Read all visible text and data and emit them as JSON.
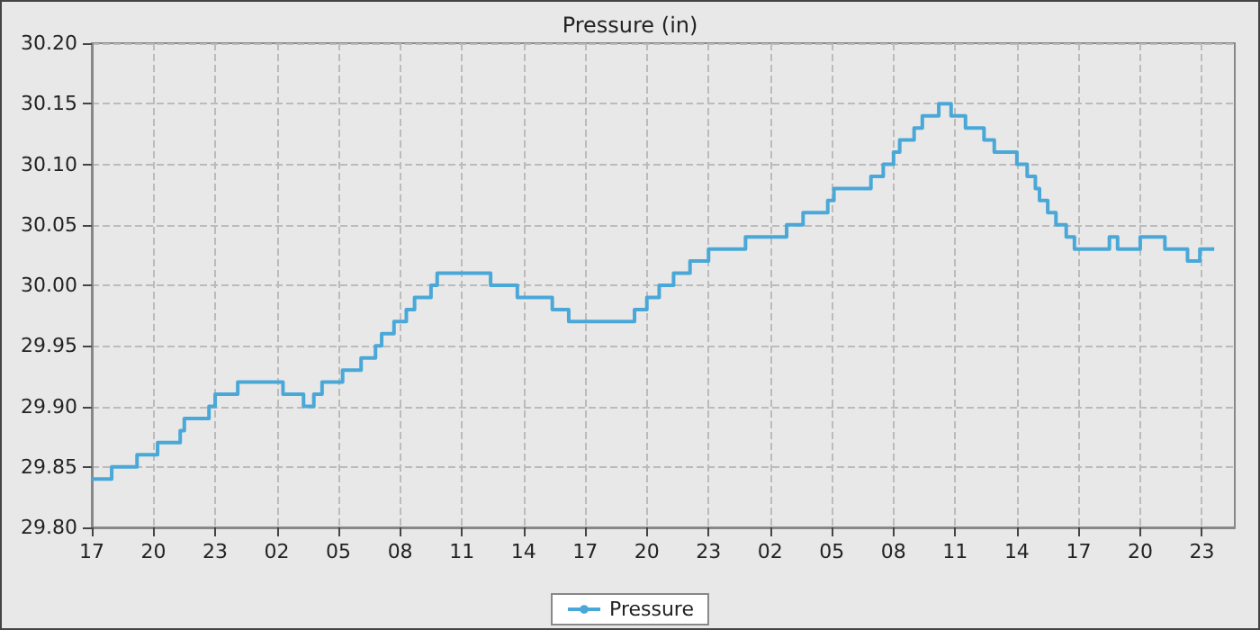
{
  "chart_data": {
    "type": "step",
    "title": "Pressure (in)",
    "x": [
      "--01-01T17:00",
      "--01-01T17:58",
      "--01-01T19:12",
      "--01-01T20:12",
      "--01-01T21:18",
      "--01-01T21:30",
      "--01-01T22:42",
      "--01-01T23:00",
      "--01-02T00:06",
      "--01-02T02:18",
      "--01-02T03:18",
      "--01-02T03:48",
      "--01-02T04:12",
      "--01-02T05:12",
      "--01-02T06:06",
      "--01-02T06:48",
      "--01-02T07:06",
      "--01-02T07:42",
      "--01-02T08:18",
      "--01-02T08:42",
      "--01-02T09:30",
      "--01-02T09:48",
      "--01-02T12:24",
      "--01-02T13:42",
      "--01-02T15:24",
      "--01-02T16:12",
      "--01-02T19:24",
      "--01-02T20:00",
      "--01-02T20:36",
      "--01-02T21:18",
      "--01-02T22:06",
      "--01-02T23:00",
      "--01-03T00:48",
      "--01-03T02:48",
      "--01-03T03:36",
      "--01-03T04:48",
      "--01-03T05:06",
      "--01-03T06:54",
      "--01-03T07:30",
      "--01-03T08:00",
      "--01-03T08:18",
      "--01-03T09:00",
      "--01-03T09:24",
      "--01-03T10:12",
      "--01-03T10:48",
      "--01-03T11:30",
      "--01-03T12:24",
      "--01-03T12:54",
      "--01-03T14:00",
      "--01-03T14:30",
      "--01-03T14:54",
      "--01-03T15:06",
      "--01-03T15:30",
      "--01-03T15:54",
      "--01-03T16:24",
      "--01-03T16:48",
      "--01-03T18:30",
      "--01-03T18:54",
      "--01-03T20:00",
      "--01-03T21:12",
      "--01-03T22:18",
      "--01-03T22:54",
      "--01-03T23:36"
    ],
    "series": [
      {
        "name": "Pressure",
        "color": "#4aa8d8",
        "values": [
          29.84,
          29.85,
          29.86,
          29.87,
          29.88,
          29.89,
          29.9,
          29.91,
          29.92,
          29.91,
          29.9,
          29.91,
          29.92,
          29.93,
          29.94,
          29.95,
          29.96,
          29.97,
          29.98,
          29.99,
          30.0,
          30.01,
          30.0,
          29.99,
          29.98,
          29.97,
          29.98,
          29.99,
          30.0,
          30.01,
          30.02,
          30.03,
          30.04,
          30.05,
          30.06,
          30.07,
          30.08,
          30.09,
          30.1,
          30.11,
          30.12,
          30.13,
          30.14,
          30.15,
          30.14,
          30.13,
          30.12,
          30.11,
          30.1,
          30.09,
          30.08,
          30.07,
          30.06,
          30.05,
          30.04,
          30.03,
          30.04,
          30.03,
          30.04,
          30.03,
          30.02,
          30.03,
          30.03
        ]
      }
    ],
    "xlim": [
      "--01-01T17:00",
      "--01-04T00:36"
    ],
    "xticks": [
      {
        "value": "--01-01T17:00",
        "label": "17"
      },
      {
        "value": "--01-01T20:00",
        "label": "20"
      },
      {
        "value": "--01-01T23:00",
        "label": "23"
      },
      {
        "value": "--01-02T02:00",
        "label": "02"
      },
      {
        "value": "--01-02T05:00",
        "label": "05"
      },
      {
        "value": "--01-02T08:00",
        "label": "08"
      },
      {
        "value": "--01-02T11:00",
        "label": "11"
      },
      {
        "value": "--01-02T14:00",
        "label": "14"
      },
      {
        "value": "--01-02T17:00",
        "label": "17"
      },
      {
        "value": "--01-02T20:00",
        "label": "20"
      },
      {
        "value": "--01-02T23:00",
        "label": "23"
      },
      {
        "value": "--01-03T02:00",
        "label": "02"
      },
      {
        "value": "--01-03T05:00",
        "label": "05"
      },
      {
        "value": "--01-03T08:00",
        "label": "08"
      },
      {
        "value": "--01-03T11:00",
        "label": "11"
      },
      {
        "value": "--01-03T14:00",
        "label": "14"
      },
      {
        "value": "--01-03T17:00",
        "label": "17"
      },
      {
        "value": "--01-03T20:00",
        "label": "20"
      },
      {
        "value": "--01-03T23:00",
        "label": "23"
      }
    ],
    "ylim": [
      29.8,
      30.2
    ],
    "yticks": [
      {
        "value": 29.8,
        "label": "29.80"
      },
      {
        "value": 29.85,
        "label": "29.85"
      },
      {
        "value": 29.9,
        "label": "29.90"
      },
      {
        "value": 29.95,
        "label": "29.95"
      },
      {
        "value": 30.0,
        "label": "30.00"
      },
      {
        "value": 30.05,
        "label": "30.05"
      },
      {
        "value": 30.1,
        "label": "30.10"
      },
      {
        "value": 30.15,
        "label": "30.15"
      },
      {
        "value": 30.2,
        "label": "30.20"
      }
    ],
    "grid": true,
    "legend": "bottom",
    "marker": "none",
    "line_style": "solid"
  }
}
